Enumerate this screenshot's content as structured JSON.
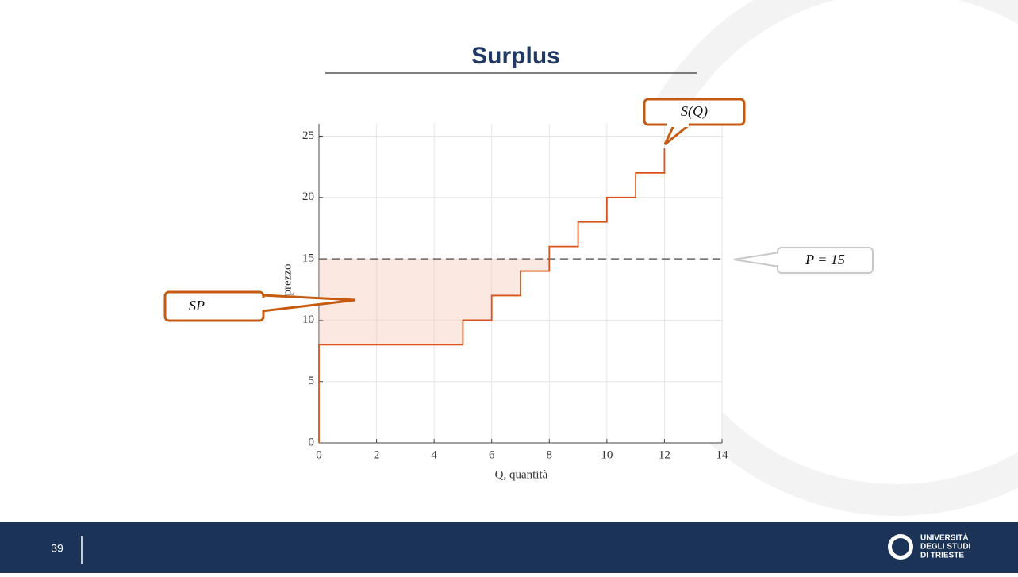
{
  "chart_data": {
    "type": "line",
    "step": true,
    "title": "Surplus",
    "x": [
      0,
      0,
      5,
      5,
      6,
      6,
      7,
      7,
      8,
      8,
      9,
      9,
      10,
      10,
      11,
      11,
      12,
      12
    ],
    "values": [
      0,
      8,
      8,
      10,
      10,
      12,
      12,
      14,
      14,
      16,
      16,
      18,
      18,
      20,
      20,
      22,
      22,
      24
    ],
    "color": "#d95319",
    "price": 15,
    "price_color": "#666666",
    "fill_color": "#f4c7b3",
    "xlim": [
      0,
      14
    ],
    "ylim": [
      0,
      26
    ],
    "xticks": [
      0,
      2,
      4,
      6,
      8,
      10,
      12,
      14
    ],
    "yticks": [
      0,
      5,
      10,
      15,
      20,
      25
    ],
    "grid": true,
    "xlabel": "Q, quantità",
    "ylabel": "p, prezzo",
    "annotations": [
      "S(Q)",
      "P = 15",
      "SP"
    ]
  },
  "footer": {
    "page_number": "39",
    "logo": [
      "UNIVERSITÀ",
      "DEGLI STUDI",
      "DI TRIESTE"
    ]
  }
}
